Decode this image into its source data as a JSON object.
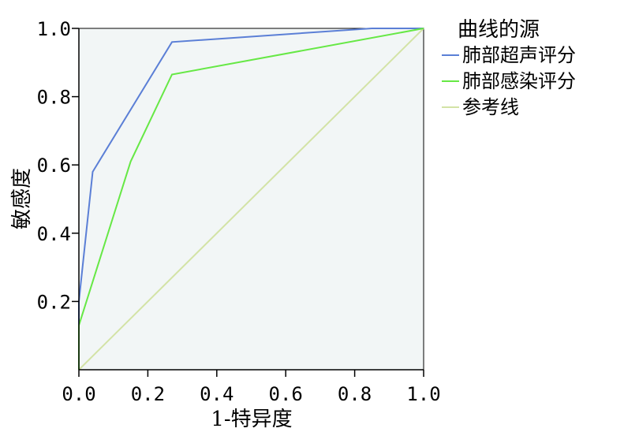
{
  "chart_data": {
    "type": "line",
    "xlabel": "1-特异度",
    "ylabel": "敏感度",
    "xlim": [
      0,
      1
    ],
    "ylim": [
      0,
      1
    ],
    "x_ticks": [
      "0.0",
      "0.2",
      "0.4",
      "0.6",
      "0.8",
      "1.0"
    ],
    "y_ticks": [
      "0.2",
      "0.4",
      "0.6",
      "0.8",
      "1.0"
    ],
    "grid": false,
    "plot_background": "#f2f6f6",
    "legend": {
      "title": "曲线的源",
      "placement": "right"
    },
    "series": [
      {
        "name": "肺部超声评分",
        "color": "#5b7fd6",
        "points": [
          [
            0,
            0
          ],
          [
            0,
            0.2
          ],
          [
            0.04,
            0.58
          ],
          [
            0.27,
            0.96
          ],
          [
            0.85,
            1.0
          ],
          [
            1.0,
            1.0
          ]
        ]
      },
      {
        "name": "肺部感染评分",
        "color": "#66e845",
        "points": [
          [
            0,
            0
          ],
          [
            0,
            0.13
          ],
          [
            0.15,
            0.61
          ],
          [
            0.27,
            0.865
          ],
          [
            1.0,
            1.0
          ]
        ]
      },
      {
        "name": "参考线",
        "color": "#d3e3a6",
        "points": [
          [
            0,
            0
          ],
          [
            1,
            1
          ]
        ]
      }
    ]
  }
}
